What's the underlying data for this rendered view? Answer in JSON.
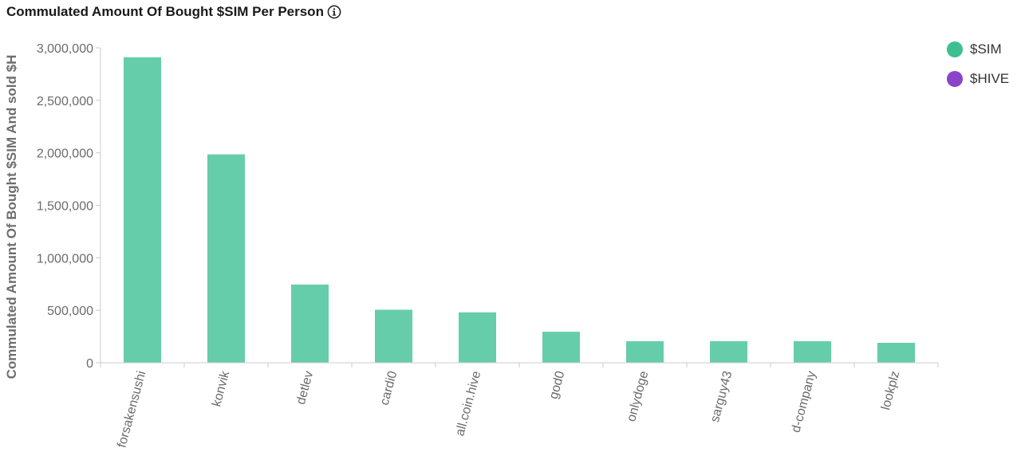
{
  "title": "Commulated Amount Of Bought $SIM Per Person",
  "icons": {
    "info": "info-circle-icon"
  },
  "colors": {
    "sim": "#66cdaa",
    "sim_legend": "#3dbf91",
    "hive": "#8a44c8",
    "axis": "#cccccc",
    "text": "#6b6b6b"
  },
  "legend": [
    {
      "label": "$SIM",
      "color": "#3dbf91"
    },
    {
      "label": "$HIVE",
      "color": "#8a44c8"
    }
  ],
  "chart_data": {
    "type": "bar",
    "title": "Commulated Amount Of Bought $SIM Per Person",
    "xlabel": "",
    "ylabel": "Commulated Amount Of Bought $SIM And sold $H",
    "ylim": [
      0,
      3000000
    ],
    "yticks": [
      0,
      500000,
      1000000,
      1500000,
      2000000,
      2500000,
      3000000
    ],
    "ytick_labels": [
      "0",
      "500,000",
      "1,000,000",
      "1,500,000",
      "2,000,000",
      "2,500,000",
      "3,000,000"
    ],
    "categories": [
      "forsakensushi",
      "konvik",
      "detlev",
      "cardi0",
      "all.coin.hive",
      "god0",
      "onlydoge",
      "sarguy43",
      "d-company",
      "lookplz"
    ],
    "series": [
      {
        "name": "$SIM",
        "values": [
          2910000,
          1985000,
          745000,
          505000,
          480000,
          295000,
          205000,
          205000,
          205000,
          190000
        ]
      }
    ],
    "legend_position": "top-right",
    "grid": false
  }
}
